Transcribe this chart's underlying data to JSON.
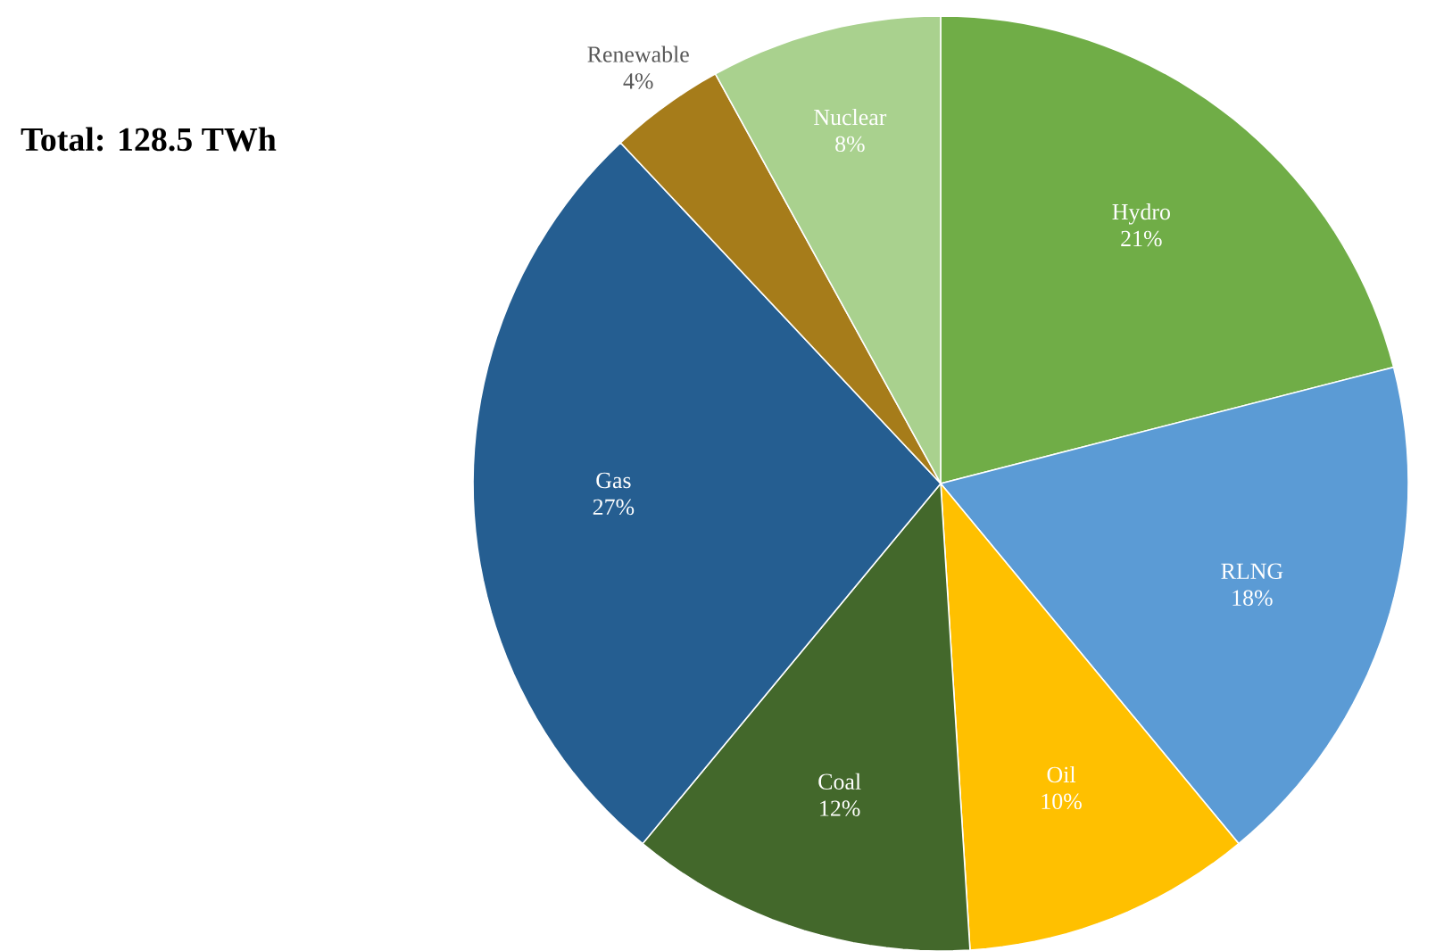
{
  "chart_data": {
    "type": "pie",
    "title": "Total: 128.5 TWh",
    "categories": [
      "Hydro",
      "RLNG",
      "Oil",
      "Coal",
      "Gas",
      "Renewable",
      "Nuclear"
    ],
    "values": [
      21,
      18,
      10,
      12,
      27,
      4,
      8
    ],
    "value_labels": [
      "21%",
      "18%",
      "10%",
      "12%",
      "27%",
      "4%",
      "8%"
    ],
    "colors": [
      "#70ad47",
      "#5b9bd5",
      "#ffc000",
      "#43682b",
      "#255e91",
      "#a67c1a",
      "#a9d18e"
    ]
  }
}
